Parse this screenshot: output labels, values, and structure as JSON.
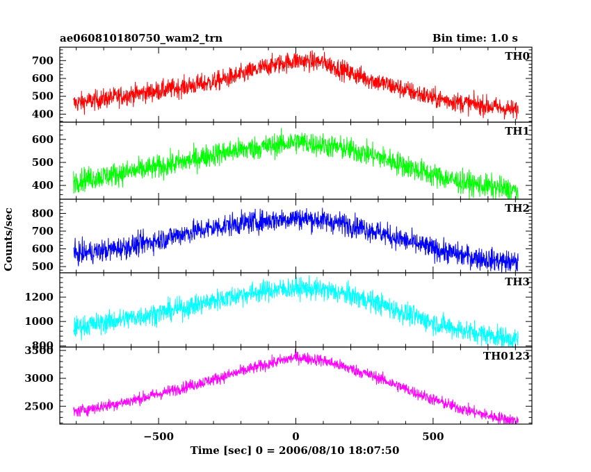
{
  "chart_data": {
    "type": "line",
    "title": "ae060810180750_wam2_trn",
    "bin_time_label": "Bin time: 1.0 s",
    "xlabel": "Time [sec] 0 = 2006/08/10 18:07:50",
    "ylabel": "Counts/sec",
    "xlim": [
      -860,
      860
    ],
    "x_ticks": [
      -500,
      0,
      500
    ],
    "x_tick_labels": [
      "−500",
      "0",
      "500"
    ],
    "x_samples": [
      -810,
      -700,
      -600,
      -500,
      -400,
      -300,
      -200,
      -100,
      0,
      100,
      200,
      300,
      400,
      500,
      600,
      700,
      810
    ],
    "series": [
      {
        "name": "TH0",
        "color": "#ff0000",
        "ylim": [
          355,
          775
        ],
        "y_ticks": [
          400,
          500,
          600,
          700
        ],
        "noise": 28,
        "values": [
          460,
          485,
          510,
          530,
          555,
          580,
          620,
          670,
          700,
          690,
          630,
          580,
          535,
          490,
          465,
          445,
          420
        ]
      },
      {
        "name": "TH1",
        "color": "#00ff00",
        "ylim": [
          340,
          675
        ],
        "y_ticks": [
          400,
          500,
          600
        ],
        "noise": 26,
        "values": [
          420,
          440,
          460,
          480,
          505,
          535,
          555,
          570,
          590,
          575,
          555,
          525,
          485,
          445,
          415,
          395,
          375
        ]
      },
      {
        "name": "TH2",
        "color": "#0000ff",
        "ylim": [
          465,
          880
        ],
        "y_ticks": [
          500,
          600,
          700,
          800
        ],
        "noise": 32,
        "values": [
          570,
          590,
          615,
          650,
          690,
          720,
          745,
          760,
          775,
          760,
          735,
          695,
          645,
          600,
          565,
          540,
          520
        ]
      },
      {
        "name": "TH3",
        "color": "#00ffff",
        "ylim": [
          790,
          1400
        ],
        "y_ticks": [
          800,
          1000,
          1200
        ],
        "noise": 45,
        "values": [
          950,
          990,
          1030,
          1070,
          1115,
          1170,
          1220,
          1255,
          1275,
          1260,
          1215,
          1150,
          1065,
          990,
          930,
          890,
          850
        ]
      },
      {
        "name": "TH0123",
        "color": "#ff00ff",
        "ylim": [
          2180,
          3560
        ],
        "y_ticks": [
          2500,
          3000,
          3500
        ],
        "noise": 55,
        "values": [
          2400,
          2500,
          2600,
          2720,
          2850,
          2980,
          3120,
          3260,
          3380,
          3320,
          3170,
          3010,
          2810,
          2620,
          2460,
          2330,
          2230
        ]
      }
    ]
  }
}
